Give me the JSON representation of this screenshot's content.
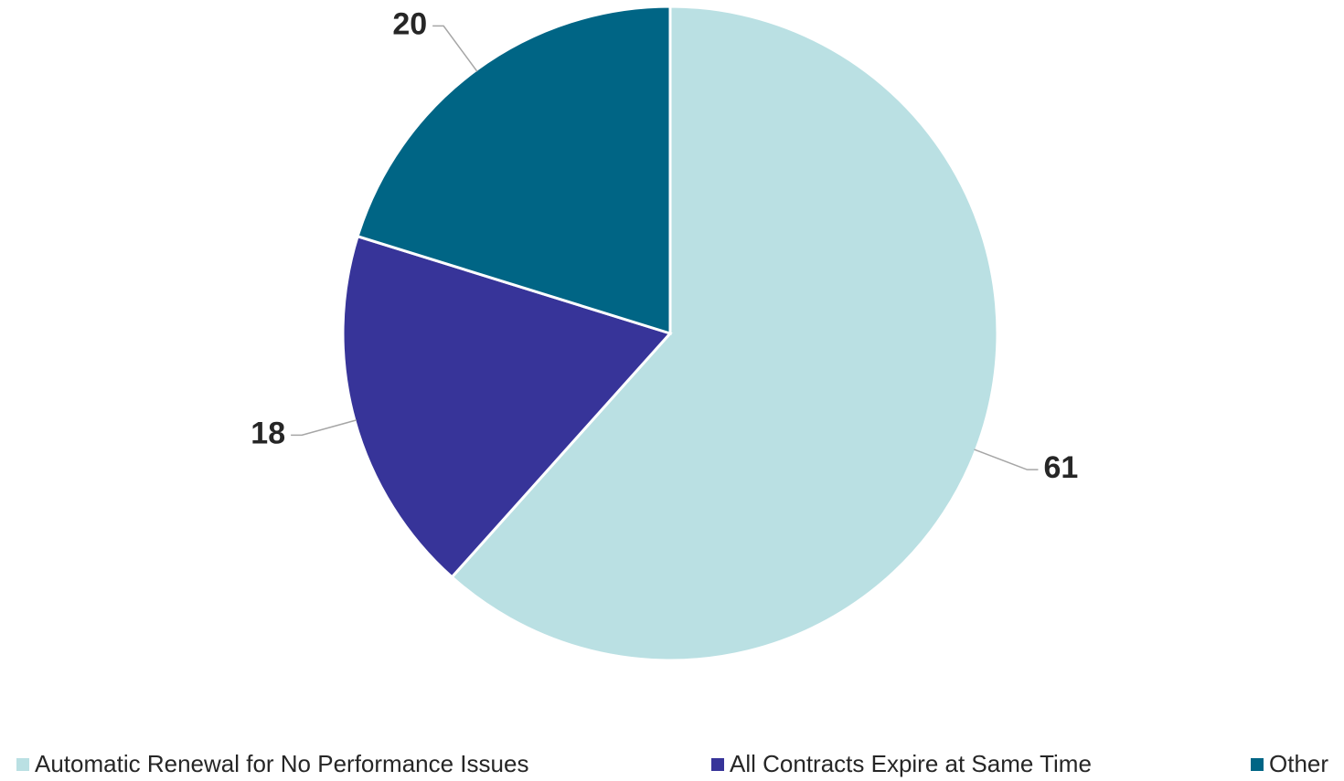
{
  "chart_data": {
    "type": "pie",
    "categories": [
      "Automatic Renewal for No Performance Issues",
      "All Contracts Expire at Same Time",
      "Other"
    ],
    "values": [
      61,
      18,
      20
    ],
    "colors": [
      "#bae0e3",
      "#373499",
      "#006585"
    ],
    "legend": "bottom"
  }
}
